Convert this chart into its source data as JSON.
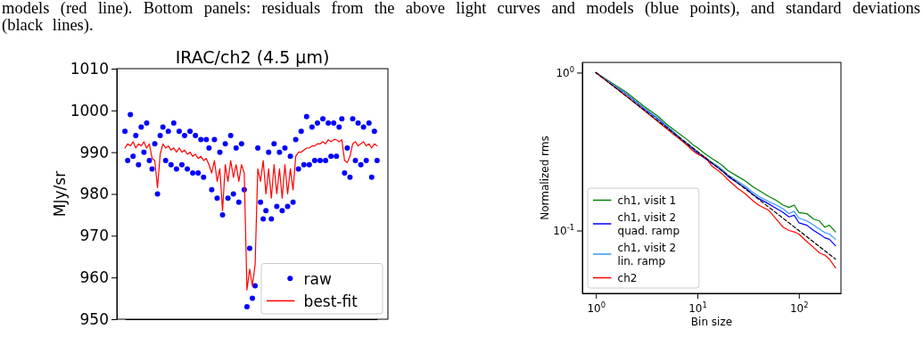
{
  "chart_data": [
    {
      "type": "scatter",
      "title": "IRAC/ch2 (4.5 μm)",
      "ylabel": "MJy/sr",
      "annotations": [
        "models (red line).  Bottom panels: residuals from the above light curves and models (blue points), and standard deviations (black lines)."
      ],
      "categories": [
        null,
        null,
        null,
        null,
        null,
        null,
        null,
        null,
        null,
        null,
        null,
        null,
        null,
        null,
        null,
        null,
        null,
        null,
        null,
        null,
        null,
        null,
        null,
        null,
        null,
        null,
        null,
        null,
        null,
        null,
        null,
        null,
        null,
        null,
        null,
        null,
        null,
        null,
        null,
        null,
        null,
        null,
        null,
        null,
        null,
        null,
        null,
        null,
        null,
        null,
        null,
        null,
        null,
        null,
        null,
        null,
        null,
        null,
        null,
        null,
        null,
        null,
        null,
        null,
        null,
        null,
        null,
        null,
        null,
        null,
        null,
        null,
        null,
        null,
        null,
        null,
        null,
        null,
        null,
        null,
        null,
        null,
        null,
        null,
        null,
        null,
        null,
        null,
        null,
        null,
        null,
        null,
        null,
        null
      ],
      "ylim": [
        950,
        1010
      ],
      "yticks": [
        950,
        960,
        970,
        980,
        990,
        1000,
        1010
      ],
      "legend": "bottom right",
      "grid": false,
      "series": [
        {
          "name": "raw",
          "marker": "circle",
          "color": "#0000ff",
          "values": [
            995,
            988,
            999,
            989,
            994,
            987,
            996,
            990,
            997,
            988,
            986,
            992,
            980,
            994,
            996,
            988,
            995,
            987,
            997,
            986,
            995,
            987,
            994,
            986,
            995,
            985,
            994,
            985,
            993,
            984,
            993,
            991,
            981,
            993,
            979,
            990,
            975,
            992,
            979,
            994,
            980,
            991,
            978,
            992,
            981,
            953,
            967,
            955,
            958,
            991,
            978,
            974,
            976,
            990,
            974,
            992,
            977,
            990,
            976,
            991,
            977,
            989,
            978,
            993,
            986,
            995,
            987,
            998.5,
            987,
            996,
            988,
            997,
            988,
            998,
            988,
            997,
            989,
            997,
            989,
            996,
            998,
            985,
            991,
            984,
            998,
            988,
            997,
            987,
            996,
            988,
            997,
            984,
            995,
            988
          ]
        },
        {
          "name": "best-fit",
          "type": "line",
          "color": "#ff0000",
          "values": [
            991,
            992,
            991.5,
            992.5,
            991,
            992,
            991.5,
            992.5,
            991,
            992,
            988.5,
            988,
            981.5,
            989.5,
            992,
            991,
            991.5,
            990.5,
            991,
            990,
            991,
            990,
            990.5,
            989.5,
            990,
            989,
            989.5,
            988.5,
            989,
            988,
            988.5,
            987,
            985,
            988,
            983,
            986,
            976,
            987,
            983,
            988,
            984,
            987,
            983,
            987,
            985,
            957,
            962,
            958,
            963,
            986,
            983,
            988,
            980,
            986,
            979,
            987,
            980,
            986,
            979,
            987,
            980,
            986,
            981,
            989,
            990,
            990,
            990.5,
            991,
            991,
            991.5,
            991.5,
            992,
            992,
            992.5,
            992,
            993,
            992.5,
            993,
            993,
            992.5,
            993,
            988,
            987.5,
            989,
            992,
            992.5,
            991.5,
            992,
            992.5,
            991.5,
            992,
            991,
            992,
            991.5
          ]
        }
      ]
    },
    {
      "type": "line",
      "xlabel": "Bin size",
      "ylabel": "Normalized rms",
      "log": "xy",
      "legend": "bottom left",
      "grid": false,
      "xlim": [
        0.735,
        260
      ],
      "xticks": [
        {
          "value": 1,
          "label": "10$^{0}$"
        },
        {
          "value": 10,
          "label": "10$^{1}$"
        },
        {
          "value": 100,
          "label": "10$^{2}$"
        }
      ],
      "ylim": [
        0.04,
        1.16
      ],
      "yticks": [
        {
          "value": 1,
          "label": "10$^{0}$"
        },
        {
          "value": 0.1,
          "label": "10$^{-1}$"
        }
      ],
      "x": [
        1,
        2,
        3,
        4,
        5,
        6,
        7,
        8,
        9,
        10,
        12,
        14,
        16,
        18,
        20,
        25,
        30,
        35,
        40,
        50,
        60,
        70,
        80,
        90,
        100,
        120,
        140,
        160,
        180,
        200,
        230
      ],
      "series": [
        {
          "name": "ch1, visit 1",
          "color": "#008000",
          "values": [
            1,
            0.75,
            0.61,
            0.535,
            0.47,
            0.43,
            0.4,
            0.375,
            0.35,
            0.335,
            0.305,
            0.285,
            0.27,
            0.255,
            0.24,
            0.22,
            0.205,
            0.19,
            0.18,
            0.165,
            0.155,
            0.145,
            0.14,
            0.145,
            0.13,
            0.128,
            0.118,
            0.115,
            0.105,
            0.108,
            0.098
          ]
        },
        {
          "name": "ch1, visit 2\nquad. ramp",
          "color": "#0000ff",
          "values": [
            1,
            0.73,
            0.59,
            0.515,
            0.455,
            0.41,
            0.375,
            0.35,
            0.33,
            0.31,
            0.285,
            0.265,
            0.25,
            0.235,
            0.22,
            0.2,
            0.185,
            0.17,
            0.16,
            0.148,
            0.138,
            0.13,
            0.122,
            0.125,
            0.112,
            0.108,
            0.1,
            0.095,
            0.09,
            0.088,
            0.08
          ]
        },
        {
          "name": "ch1, visit 2\nlin. ramp",
          "color": "#3399ff",
          "values": [
            1,
            0.735,
            0.595,
            0.52,
            0.46,
            0.415,
            0.38,
            0.355,
            0.335,
            0.315,
            0.29,
            0.27,
            0.255,
            0.24,
            0.225,
            0.205,
            0.19,
            0.175,
            0.165,
            0.153,
            0.145,
            0.137,
            0.128,
            0.132,
            0.12,
            0.115,
            0.108,
            0.102,
            0.097,
            0.095,
            0.088
          ]
        },
        {
          "name": "ch2",
          "color": "#ff0000",
          "values": [
            1,
            0.71,
            0.575,
            0.495,
            0.44,
            0.4,
            0.37,
            0.345,
            0.32,
            0.305,
            0.29,
            0.255,
            0.24,
            0.225,
            0.21,
            0.185,
            0.17,
            0.155,
            0.145,
            0.135,
            0.118,
            0.105,
            0.1,
            0.098,
            0.095,
            0.085,
            0.078,
            0.072,
            0.07,
            0.066,
            0.058
          ]
        },
        {
          "color": "#000000",
          "line_style": "dashed",
          "x": [
            1,
            230
          ],
          "values": [
            1,
            0.0659
          ]
        }
      ]
    }
  ]
}
